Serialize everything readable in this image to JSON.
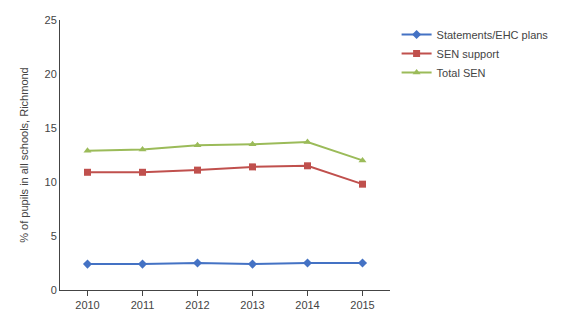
{
  "chart_data": {
    "type": "line",
    "x": [
      2010,
      2011,
      2012,
      2013,
      2014,
      2015
    ],
    "series": [
      {
        "name": "Statements/EHC plans",
        "color": "#4472C4",
        "marker": "diamond",
        "values": [
          2.4,
          2.4,
          2.5,
          2.4,
          2.5,
          2.5
        ]
      },
      {
        "name": "SEN support",
        "color": "#C0504D",
        "marker": "square",
        "values": [
          10.9,
          10.9,
          11.1,
          11.4,
          11.5,
          9.8
        ]
      },
      {
        "name": "Total SEN",
        "color": "#9BBB59",
        "marker": "triangle",
        "values": [
          12.9,
          13.0,
          13.4,
          13.5,
          13.7,
          12.0
        ]
      }
    ],
    "ylabel": "% of pupils in all schools, Richmond",
    "xlim": [
      2009.5,
      2015.5
    ],
    "xticks": [
      2010,
      2011,
      2012,
      2013,
      2014,
      2015
    ],
    "ylim": [
      0,
      25
    ],
    "yticks": [
      0,
      5,
      10,
      15,
      20,
      25
    ],
    "grid": false,
    "legend": "right"
  }
}
